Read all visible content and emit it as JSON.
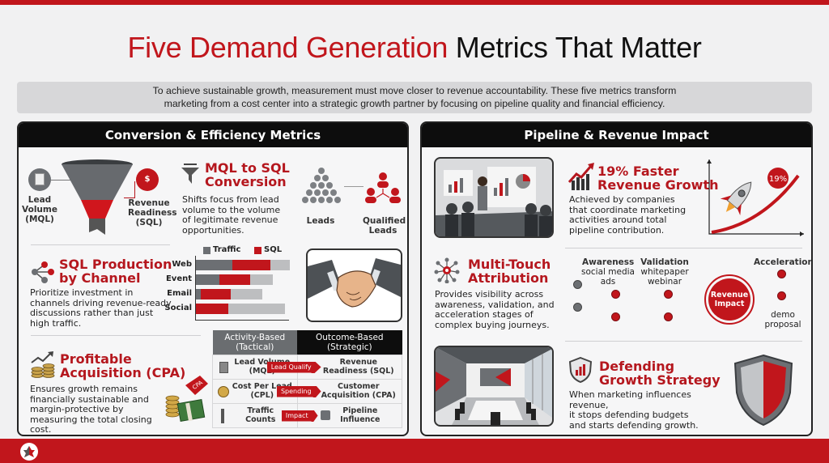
{
  "header": {
    "title_red": "Five Demand Generation",
    "title_black": "Metrics That Matter",
    "intro_line1": "To achieve sustainable growth, measurement must move closer to revenue accountability. These five metrics transform",
    "intro_line2": "marketing from a cost center into a strategic growth partner by focusing on pipeline quality and financial efficiency."
  },
  "left_panel": {
    "title": "Conversion & Efficiency Metrics",
    "mql_sql": {
      "funnel_left_label": [
        "Lead",
        "Volume",
        "(MQL)"
      ],
      "funnel_right_label": [
        "Revenue",
        "Readiness",
        "(SQL)"
      ],
      "heading_line1": "MQL to SQL",
      "heading_line2": "Conversion",
      "description": "Shifts focus from lead volume to the volume of legitimate revenue opportunities.",
      "leads_label": "Leads",
      "qualified_label": [
        "Qualified",
        "Leads"
      ]
    },
    "sql_channel": {
      "heading_line1": "SQL Production",
      "heading_line2": "by Channel",
      "description": "Prioritize investment in channels driving revenue-ready discussions rather than just high traffic.",
      "legend": [
        "Traffic",
        "SQL"
      ]
    },
    "cpa": {
      "heading_line1": "Profitable",
      "heading_line2": "Acquisition (CPA)",
      "description": "Ensures growth remains financially sustainable and margin-protective by measuring the total closing cost.",
      "tag": "CPA"
    },
    "table": {
      "col1": [
        "Activity-Based",
        "(Tactical)"
      ],
      "col2": [
        "Outcome-Based",
        "(Strategic)"
      ],
      "rows": [
        {
          "left": [
            "Lead Volume",
            "(MQL)"
          ],
          "arrow": "Lead Qualify",
          "right": [
            "Revenue",
            "Readiness (SQL)"
          ]
        },
        {
          "left": [
            "Cost Per Lead",
            "(CPL)"
          ],
          "arrow": "Spending",
          "right": [
            "Customer",
            "Acquisition (CPA)"
          ]
        },
        {
          "left": [
            "Traffic",
            "Counts"
          ],
          "arrow": "Impact",
          "right": [
            "Pipeline",
            "Influence"
          ]
        }
      ]
    }
  },
  "right_panel": {
    "title": "Pipeline & Revenue Impact",
    "growth": {
      "heading_line1": "19% Faster",
      "heading_line2": "Revenue Growth",
      "description": "Achieved by companies that coordinate marketing activities around total pipeline contribution.",
      "badge": "19%"
    },
    "attribution": {
      "heading_line1": "Multi-Touch",
      "heading_line2": "Attribution",
      "description": "Provides visibility across awareness, validation, and acceleration stages of complex buying journeys.",
      "stage_awareness": "Awareness",
      "awareness_channels": [
        "social media",
        "ads"
      ],
      "stage_validation": "Validation",
      "validation_channels": [
        "whitepaper",
        "webinar"
      ],
      "center": [
        "Revenue",
        "Impact"
      ],
      "stage_acceleration": "Acceleration",
      "acceleration_channels": [
        "demo",
        "proposal"
      ]
    },
    "defending": {
      "heading_line1": "Defending",
      "heading_line2": "Growth Strategy",
      "description_lines": [
        "When marketing influences revenue,",
        "it stops defending budgets",
        "and starts defending growth."
      ]
    }
  },
  "chart_data": {
    "type": "bar",
    "stacked": true,
    "title": "SQL Production by Channel",
    "categories": [
      "Web",
      "Event",
      "Email",
      "Social"
    ],
    "series": [
      {
        "name": "Traffic",
        "color": "#6c6f73",
        "values": [
          45,
          29,
          6,
          0
        ]
      },
      {
        "name": "SQL",
        "color": "#c1161c",
        "values": [
          47,
          38,
          37,
          40
        ]
      },
      {
        "name": "Remainder",
        "color": "#bdbec0",
        "values": [
          24,
          28,
          39,
          70
        ]
      }
    ],
    "legend": [
      "Traffic",
      "SQL"
    ],
    "xlabel": "",
    "ylabel": ""
  },
  "colors": {
    "accent": "#c1161c",
    "dark": "#0d0d0d",
    "gray": "#6c6f73",
    "light_gray": "#bdbec0"
  }
}
